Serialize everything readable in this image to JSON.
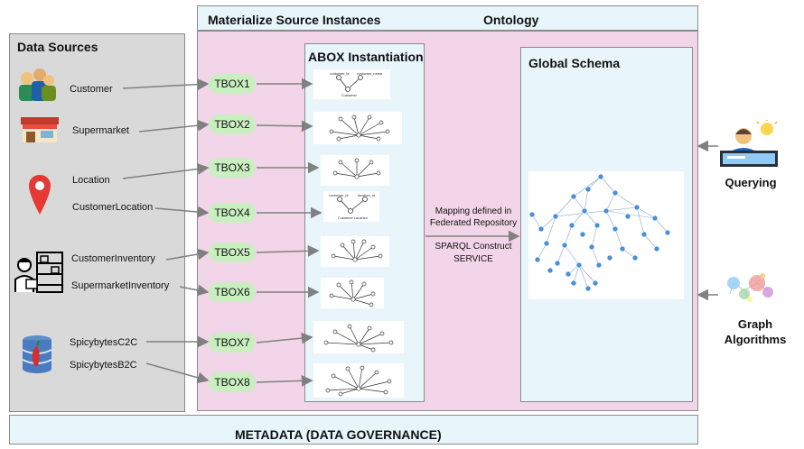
{
  "titles": {
    "materialize": "Materialize Source Instances",
    "ontology": "Ontology",
    "data_sources": "Data Sources",
    "abox": "ABOX Instantiation",
    "global_schema": "Global Schema",
    "metadata": "METADATA (DATA GOVERNANCE)"
  },
  "sources": [
    "Customer",
    "Supermarket",
    "Location",
    "CustomerLocation",
    "CustomerInventory",
    "SupermarketInventory",
    "SpicybytesC2C",
    "SpicybytesB2C"
  ],
  "tboxes": [
    "TBOX1",
    "TBOX2",
    "TBOX3",
    "TBOX4",
    "TBOX5",
    "TBOX6",
    "TBOX7",
    "TBOX8"
  ],
  "mapping": {
    "line1": "Mapping defined in",
    "line2": "Federated Repository",
    "line3": "SPARQL Construct",
    "line4": "SERVICE"
  },
  "right": {
    "querying": "Querying",
    "graph_line1": "Graph",
    "graph_line2": "Algorithms"
  },
  "abox_labels": {
    "customer_id": "customer_id",
    "customer_name": "customer_name",
    "customer": "Customer",
    "customer_id2": "customer_id",
    "location_id": "location_id",
    "customer_location": "Customer Location"
  },
  "colors": {
    "light_blue": "#e8f6fb",
    "pink": "#f2d5e8",
    "gray": "#d9d9d9",
    "tbox_green": "#c9efc0",
    "node_blue": "#4a90d9"
  }
}
